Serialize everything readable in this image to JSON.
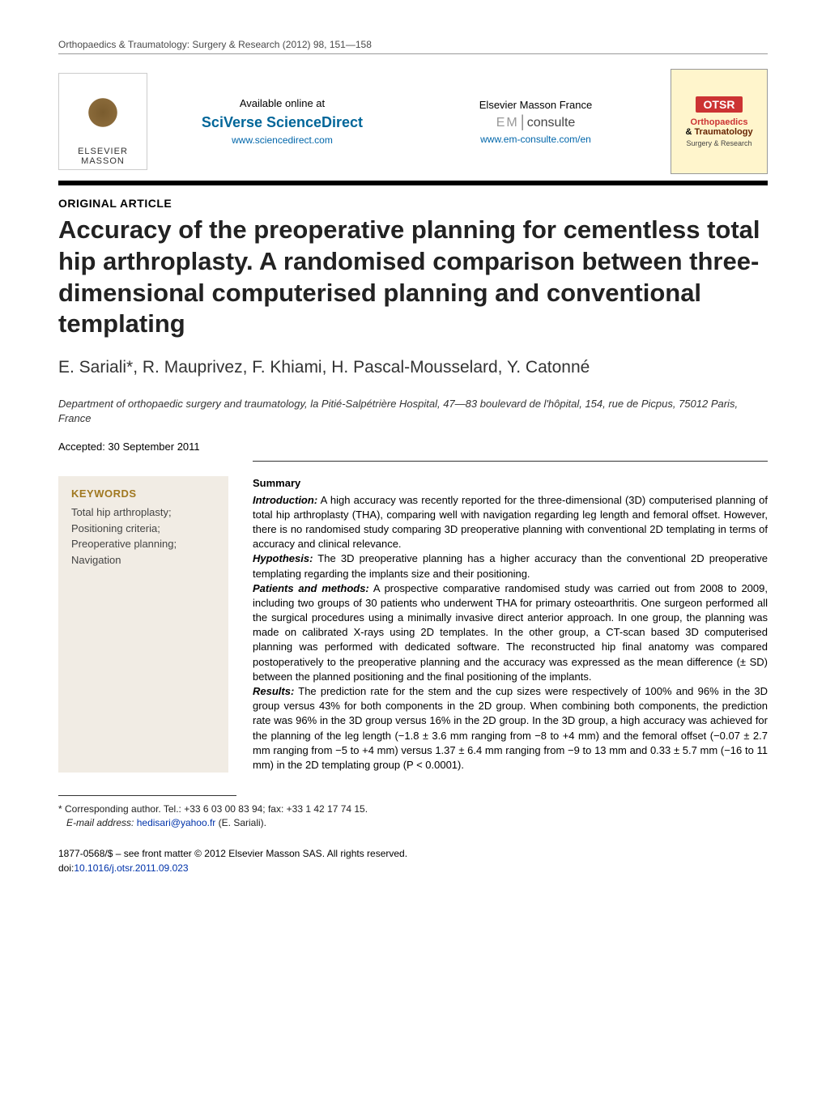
{
  "running_head": "Orthopaedics & Traumatology: Surgery & Research (2012) 98, 151—158",
  "header": {
    "publisher_name": "ELSEVIER MASSON",
    "available_label": "Available online at",
    "sciencedirect": "SciVerse ScienceDirect",
    "sciencedirect_url": "www.sciencedirect.com",
    "masson_label": "Elsevier Masson France",
    "emconsulte_em": "EM",
    "emconsulte_rest": "consulte",
    "emconsulte_url": "www.em-consulte.com/en",
    "otsr_badge": "OTSR",
    "journal_ortho": "Orthopaedics",
    "journal_amp": "& ",
    "journal_trauma": "Traumatology",
    "journal_sub": "Surgery & Research"
  },
  "article_type": "ORIGINAL ARTICLE",
  "title": "Accuracy of the preoperative planning for cementless total hip arthroplasty. A randomised comparison between three-dimensional computerised planning and conventional templating",
  "authors": "E. Sariali*, R. Mauprivez, F. Khiami, H. Pascal-Mousselard, Y. Catonné",
  "affiliation": "Department of orthopaedic surgery and traumatology, la Pitié-Salpétrière Hospital, 47—83 boulevard de l'hôpital, 154, rue de Picpus, 75012 Paris, France",
  "accepted": "Accepted: 30 September 2011",
  "keywords": {
    "head": "KEYWORDS",
    "items": "Total hip arthroplasty; Positioning criteria; Preoperative planning; Navigation"
  },
  "summary": {
    "head": "Summary",
    "intro_label": "Introduction:",
    "intro": " A high accuracy was recently reported for the three-dimensional (3D) computerised planning of total hip arthroplasty (THA), comparing well with navigation regarding leg length and femoral offset. However, there is no randomised study comparing 3D preoperative planning with conventional 2D templating in terms of accuracy and clinical relevance.",
    "hyp_label": "Hypothesis:",
    "hyp": " The 3D preoperative planning has a higher accuracy than the conventional 2D preoperative templating regarding the implants size and their positioning.",
    "methods_label": "Patients and methods:",
    "methods": " A prospective comparative randomised study was carried out from 2008 to 2009, including two groups of 30 patients who underwent THA for primary osteoarthritis. One surgeon performed all the surgical procedures using a minimally invasive direct anterior approach. In one group, the planning was made on calibrated X-rays using 2D templates. In the other group, a CT-scan based 3D computerised planning was performed with dedicated software. The reconstructed hip final anatomy was compared postoperatively to the preoperative planning and the accuracy was expressed as the mean difference (± SD) between the planned positioning and the final positioning of the implants.",
    "results_label": "Results:",
    "results": " The prediction rate for the stem and the cup sizes were respectively of 100% and 96% in the 3D group versus 43% for both components in the 2D group. When combining both components, the prediction rate was 96% in the 3D group versus 16% in the 2D group. In the 3D group, a high accuracy was achieved for the planning of the leg length (−1.8 ± 3.6 mm ranging from −8 to +4 mm) and the femoral offset (−0.07 ± 2.7 mm ranging from −5 to +4 mm) versus 1.37 ± 6.4 mm ranging from −9 to 13 mm and 0.33 ± 5.7 mm (−16 to 11 mm) in the 2D templating group (P < 0.0001)."
  },
  "footnotes": {
    "corr": "* Corresponding author. Tel.: +33 6 03 00 83 94; fax: +33 1 42 17 74 15.",
    "email_label": "E-mail address:",
    "email": "hedisari@yahoo.fr",
    "email_suffix": " (E. Sariali)."
  },
  "copyright": {
    "line1": "1877-0568/$ – see front matter © 2012 Elsevier Masson SAS. All rights reserved.",
    "doi_prefix": "doi:",
    "doi": "10.1016/j.otsr.2011.09.023"
  },
  "colors": {
    "kw_bg": "#f1ece4",
    "kw_head": "#a07820",
    "link": "#0033aa",
    "otsr_red": "#cc3333"
  }
}
